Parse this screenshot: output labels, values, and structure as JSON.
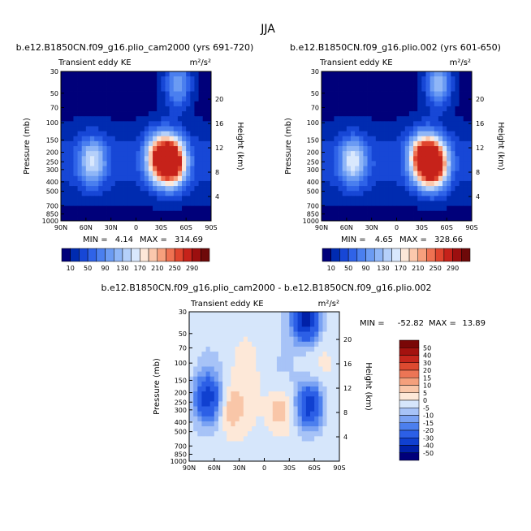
{
  "figure": {
    "title": "JJA"
  },
  "palettes": {
    "full": [
      "#00007a",
      "#002bb0",
      "#1747d6",
      "#2f63e8",
      "#4a7fef",
      "#6b9bf3",
      "#8fb6f7",
      "#b5d0fa",
      "#d9e8fd",
      "#fde7d8",
      "#fbc8ad",
      "#f7a07d",
      "#ef7252",
      "#e0452e",
      "#c6221a",
      "#9c0f0f",
      "#6e0909"
    ],
    "diff": [
      "#00007a",
      "#0020a8",
      "#1040d0",
      "#2c5fe6",
      "#4c7fee",
      "#7aa2f3",
      "#a7c3f7",
      "#d6e6fb",
      "#fde8d8",
      "#f9c6a8",
      "#f4a07c",
      "#ec7555",
      "#dd4a30",
      "#c5261c",
      "#a4120f",
      "#7a0707"
    ]
  },
  "chart_data": [
    {
      "type": "heatmap",
      "title": "b.e12.B1850CN.f09_g16.plio_cam2000 (yrs 691-720)",
      "subtitle_left": "Transient eddy KE",
      "units": "m²/s²",
      "xlabel": "",
      "ylabel": "Pressure (mb)",
      "y2label": "Height (km)",
      "x_ticks": [
        "90N",
        "60N",
        "30N",
        "0",
        "30S",
        "60S",
        "90S"
      ],
      "y_ticks": [
        "30",
        "50",
        "70",
        "100",
        "150",
        "200",
        "250",
        "300",
        "400",
        "500",
        "700",
        "850",
        "1000"
      ],
      "y2_ticks": [
        "20",
        "16",
        "12",
        "8",
        "4"
      ],
      "min_label": "MIN =",
      "min_value": "4.14",
      "max_label": "MAX =",
      "max_value": "314.69",
      "colorbar_labels": [
        "10",
        "50",
        "90",
        "130",
        "170",
        "210",
        "250",
        "290"
      ],
      "colorbar_levels": [
        10,
        30,
        50,
        70,
        90,
        110,
        130,
        150,
        170,
        190,
        210,
        230,
        250,
        270,
        290,
        310
      ],
      "range": [
        4.14,
        314.69
      ],
      "features": [
        {
          "lat": 52,
          "p": 250,
          "value": 150
        },
        {
          "lat": -44,
          "p": 250,
          "value": 314
        },
        {
          "lat": -28,
          "p": 230,
          "value": 260
        },
        {
          "lat": -50,
          "p": 40,
          "value": 140
        }
      ]
    },
    {
      "type": "heatmap",
      "title": "b.e12.B1850CN.f09_g16.plio.002 (yrs 601-650)",
      "subtitle_left": "Transient eddy KE",
      "units": "m²/s²",
      "xlabel": "",
      "ylabel": "Pressure (mb)",
      "y2label": "Height (km)",
      "x_ticks": [
        "90N",
        "60N",
        "30N",
        "0",
        "30S",
        "60S",
        "90S"
      ],
      "y_ticks": [
        "30",
        "50",
        "70",
        "100",
        "150",
        "200",
        "250",
        "300",
        "400",
        "500",
        "700",
        "850",
        "1000"
      ],
      "y2_ticks": [
        "20",
        "16",
        "12",
        "8",
        "4"
      ],
      "min_label": "MIN =",
      "min_value": "4.65",
      "max_label": "MAX =",
      "max_value": "328.66",
      "colorbar_labels": [
        "10",
        "50",
        "90",
        "130",
        "170",
        "210",
        "250",
        "290"
      ],
      "colorbar_levels": [
        10,
        30,
        50,
        70,
        90,
        110,
        130,
        150,
        170,
        190,
        210,
        230,
        250,
        270,
        290,
        310
      ],
      "range": [
        4.65,
        328.66
      ],
      "features": [
        {
          "lat": 52,
          "p": 250,
          "value": 160
        },
        {
          "lat": -45,
          "p": 260,
          "value": 328
        },
        {
          "lat": -30,
          "p": 230,
          "value": 250
        },
        {
          "lat": -50,
          "p": 40,
          "value": 150
        }
      ]
    },
    {
      "type": "heatmap",
      "title": "b.e12.B1850CN.f09_g16.plio_cam2000 - b.e12.B1850CN.f09_g16.plio.002",
      "subtitle_left": "Transient eddy KE",
      "units": "m²/s²",
      "xlabel": "",
      "ylabel": "Pressure (mb)",
      "y2label": "Height (km)",
      "x_ticks": [
        "90N",
        "60N",
        "30N",
        "0",
        "30S",
        "60S",
        "90S"
      ],
      "y_ticks": [
        "30",
        "50",
        "70",
        "100",
        "150",
        "200",
        "250",
        "300",
        "400",
        "500",
        "700",
        "850",
        "1000"
      ],
      "y2_ticks": [
        "20",
        "16",
        "12",
        "8",
        "4"
      ],
      "min_label": "MIN =",
      "min_value": "-52.82",
      "max_label": "MAX =",
      "max_value": "13.89",
      "colorbar_labels": [
        "50",
        "40",
        "30",
        "20",
        "15",
        "10",
        "5",
        "0",
        "-5",
        "-10",
        "-15",
        "-20",
        "-30",
        "-40",
        "-50"
      ],
      "colorbar_levels": [
        -60,
        -50,
        -40,
        -30,
        -20,
        -15,
        -10,
        -5,
        0,
        5,
        10,
        15,
        20,
        30,
        40,
        50,
        60
      ],
      "range": [
        -52.82,
        13.89
      ],
      "features": [
        {
          "lat": -50,
          "p": 35,
          "value": -45
        },
        {
          "lat": -55,
          "p": 270,
          "value": -35
        },
        {
          "lat": 68,
          "p": 230,
          "value": -30
        },
        {
          "lat": -20,
          "p": 300,
          "value": 13
        },
        {
          "lat": 40,
          "p": 300,
          "value": 10
        }
      ]
    }
  ]
}
